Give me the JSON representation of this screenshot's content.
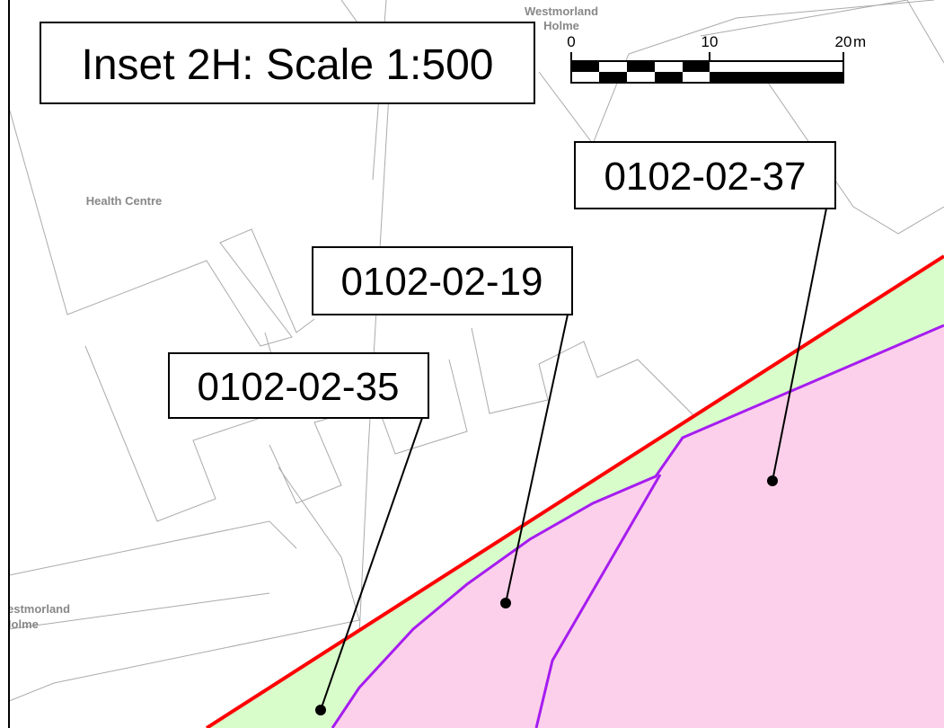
{
  "title": "Inset 2H: Scale 1:500",
  "scale_bar": {
    "ticks": [
      "0",
      "10",
      "20"
    ],
    "unit": "m"
  },
  "places": [
    {
      "lines": [
        "Westmorland",
        "Holme"
      ]
    },
    {
      "lines": [
        "Health Centre"
      ]
    },
    {
      "lines": [
        "Westmorland",
        "Holme"
      ]
    }
  ],
  "parcels": [
    {
      "label": "0102-02-37"
    },
    {
      "label": "0102-02-19"
    },
    {
      "label": "0102-02-35"
    }
  ]
}
